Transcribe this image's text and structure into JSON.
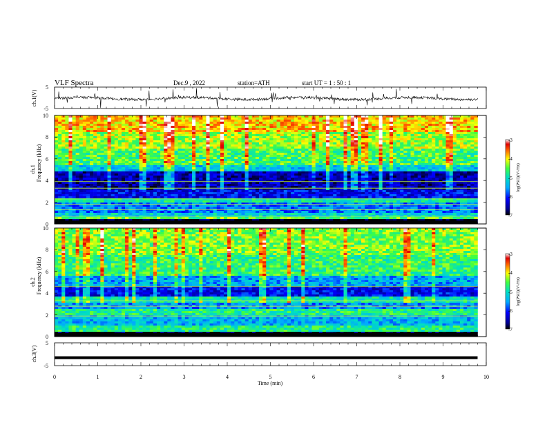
{
  "header": {
    "title": "VLF  Spectra",
    "date": "Dec.9  , 2022",
    "station": "station=ATH",
    "start": "start  UT  =   1  : 50 : 1"
  },
  "chart_data": [
    {
      "type": "line",
      "panel": "ch1-waveform",
      "ylabel": "ch.1(V)",
      "xlim": [
        0,
        10
      ],
      "ylim": [
        -5,
        5
      ],
      "yticks": [
        "5",
        "-5"
      ],
      "baseline_v": -0.3,
      "series_color": "#000000"
    },
    {
      "type": "heatmap",
      "panel": "ch1-spectrogram",
      "ylabel": "ch.1\nFrequency  (kHz)",
      "ylabel_lines": [
        "ch.1",
        "Frequency  (kHz)"
      ],
      "xlim": [
        0,
        10
      ],
      "data_end_min": 9.8,
      "ylim": [
        0,
        10
      ],
      "yticks": [
        "0",
        "2",
        "4",
        "6",
        "8",
        "10"
      ],
      "colorbar": {
        "label": "log(PSD)(V²/Hz)",
        "min": -7,
        "max": -3,
        "ticks": [
          "-3",
          "-4",
          "-5",
          "-6",
          "-7"
        ]
      },
      "bands": [
        {
          "from": 0.0,
          "to": 0.3,
          "value": -7.0
        },
        {
          "from": 0.3,
          "to": 0.6,
          "value": -4.5
        },
        {
          "from": 0.6,
          "to": 1.0,
          "value": -5.2
        },
        {
          "from": 1.0,
          "to": 2.0,
          "value": -5.7
        },
        {
          "from": 2.0,
          "to": 2.4,
          "value": -4.9
        },
        {
          "from": 2.4,
          "to": 3.0,
          "value": -6.2
        },
        {
          "from": 3.0,
          "to": 4.8,
          "value": -6.5
        },
        {
          "from": 4.8,
          "to": 5.4,
          "value": -5.3
        },
        {
          "from": 5.4,
          "to": 7.0,
          "value": -4.6
        },
        {
          "from": 7.0,
          "to": 8.5,
          "value": -4.3
        },
        {
          "from": 8.5,
          "to": 10.0,
          "value": -3.9
        }
      ],
      "lines_khz": [
        0.7,
        1.3,
        1.8,
        2.3,
        3.3,
        3.9
      ]
    },
    {
      "type": "heatmap",
      "panel": "ch2-spectrogram",
      "ylabel_lines": [
        "ch.2",
        "Frequency  (kHz)"
      ],
      "xlim": [
        0,
        10
      ],
      "data_end_min": 9.8,
      "ylim": [
        0,
        10
      ],
      "yticks": [
        "0",
        "2",
        "4",
        "6",
        "8",
        "10"
      ],
      "colorbar": {
        "label": "log(PSD)(V²/Hz)",
        "min": -7,
        "max": -3,
        "ticks": [
          "-3",
          "-4",
          "-5",
          "-6",
          "-7"
        ]
      },
      "bands": [
        {
          "from": 0.0,
          "to": 0.3,
          "value": -7.0
        },
        {
          "from": 0.3,
          "to": 1.0,
          "value": -4.8
        },
        {
          "from": 1.0,
          "to": 2.0,
          "value": -5.4
        },
        {
          "from": 2.0,
          "to": 2.5,
          "value": -4.8
        },
        {
          "from": 2.5,
          "to": 3.0,
          "value": -5.6
        },
        {
          "from": 3.0,
          "to": 3.6,
          "value": -5.0
        },
        {
          "from": 3.6,
          "to": 4.6,
          "value": -6.2
        },
        {
          "from": 4.6,
          "to": 5.6,
          "value": -5.5
        },
        {
          "from": 5.6,
          "to": 7.5,
          "value": -4.7
        },
        {
          "from": 7.5,
          "to": 10.0,
          "value": -4.4
        }
      ],
      "lines_khz": [
        1.9,
        2.8,
        3.3,
        4.6
      ]
    },
    {
      "type": "line",
      "panel": "ch3-waveform",
      "ylabel": "ch.3(V)",
      "xlim": [
        0,
        10
      ],
      "ylim": [
        -5,
        5
      ],
      "yticks": [
        "5",
        "-5"
      ],
      "baseline_v": -1.5,
      "series_color": "#000000"
    }
  ],
  "x_axis": {
    "label": "Time  (min)",
    "ticks": [
      "0",
      "1",
      "2",
      "3",
      "4",
      "5",
      "6",
      "7",
      "8",
      "9",
      "10"
    ]
  }
}
